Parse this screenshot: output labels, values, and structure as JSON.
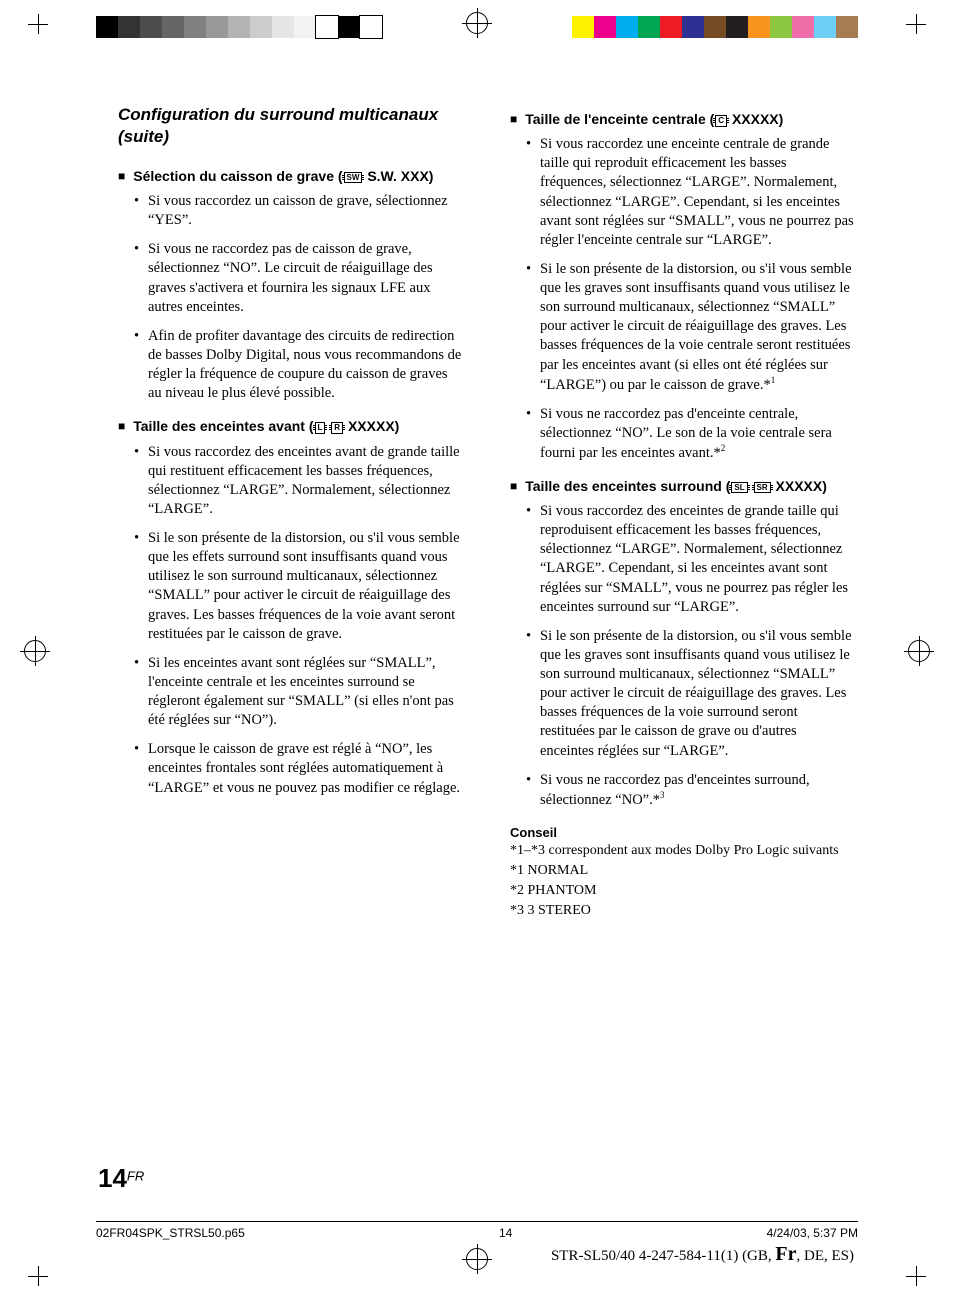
{
  "registration": {
    "left_bar_colors": [
      "#000000",
      "#333333",
      "#4d4d4d",
      "#666666",
      "#808080",
      "#999999",
      "#b3b3b3",
      "#cccccc",
      "#e6e6e6",
      "#f2f2f2",
      "#ffffff",
      "#000000",
      "#ffffff"
    ],
    "right_bar_colors": [
      "#fff200",
      "#ec008c",
      "#00aeef",
      "#00a651",
      "#ed1c24",
      "#2e3192",
      "#754c24",
      "#231f20",
      "#f7941d",
      "#8dc63f",
      "#f06eaa",
      "#6dcff6",
      "#a67c52"
    ]
  },
  "page_title": "Configuration du surround multicanaux (suite)",
  "sections": {
    "s1": {
      "head_prefix": "Sélection du caisson de grave (",
      "icon": "SW",
      "head_suffix": " S.W. XXX)",
      "bullets": [
        "Si vous raccordez un caisson de grave, sélectionnez “YES”.",
        "Si vous ne raccordez pas de caisson de grave, sélectionnez “NO”. Le circuit de réaiguillage des graves s'activera et fournira les signaux LFE aux autres enceintes.",
        "Afin de profiter davantage des circuits de redirection de basses Dolby Digital, nous vous recommandons de régler la fréquence de coupure du caisson de graves au niveau le plus élevé possible."
      ]
    },
    "s2": {
      "head_prefix": "Taille des enceintes avant (",
      "icon1": "L",
      "icon2": "R",
      "head_suffix": " XXXXX)",
      "bullets": [
        "Si vous raccordez des enceintes avant de grande taille qui restituent efficacement les basses fréquences, sélectionnez “LARGE”. Normalement, sélectionnez “LARGE”.",
        "Si le son présente de la distorsion, ou s'il vous semble que les effets surround sont insuffisants quand vous utilisez le son surround multicanaux, sélectionnez “SMALL” pour activer le circuit de  réaiguillage des graves. Les basses fréquences de la voie avant seront restituées par le caisson de grave.",
        "Si les enceintes avant sont réglées sur “SMALL”, l'enceinte centrale et les enceintes surround se régleront également sur “SMALL” (si elles n'ont pas été réglées sur “NO”).",
        "Lorsque le caisson de grave est réglé à “NO”, les enceintes frontales sont réglées automatiquement à “LARGE” et vous ne pouvez pas modifier ce réglage."
      ]
    },
    "s3": {
      "head_prefix": "Taille de l'enceinte centrale (",
      "icon": "C",
      "head_suffix": " XXXXX)",
      "b1": "Si vous raccordez une enceinte centrale de grande taille qui reproduit efficacement les basses fréquences, sélectionnez “LARGE”. Normalement, sélectionnez “LARGE”. Cependant, si les enceintes avant sont réglées sur “SMALL”, vous ne pourrez pas régler l'enceinte centrale sur “LARGE”.",
      "b2_pre": "Si le son présente de la distorsion, ou s'il vous semble que les graves sont insuffisants quand vous utilisez le son surround multicanaux, sélectionnez “SMALL” pour activer le circuit de réaiguillage des graves. Les basses fréquences de la voie centrale seront restituées par les enceintes avant (si elles ont été réglées sur “LARGE”) ou par le caisson de grave.*",
      "b2_sup": "1",
      "b3_pre": "Si vous ne raccordez pas d'enceinte centrale, sélectionnez “NO”. Le son de la voie centrale sera fourni par les enceintes avant.*",
      "b3_sup": "2"
    },
    "s4": {
      "head_prefix": "Taille des enceintes surround (",
      "icon1": "SL",
      "icon2": "SR",
      "head_suffix": " XXXXX)",
      "b1": "Si vous raccordez des enceintes de grande taille qui reproduisent efficacement les basses fréquences, sélectionnez “LARGE”. Normalement, sélectionnez “LARGE”. Cependant, si les enceintes avant sont réglées sur “SMALL”, vous ne pourrez pas régler les enceintes surround sur “LARGE”.",
      "b2": "Si le son présente de la distorsion, ou s'il vous semble que les graves sont insuffisants quand vous utilisez le son surround multicanaux, sélectionnez “SMALL” pour activer le circuit de réaiguillage des graves. Les basses fréquences de la voie surround seront restituées par le caisson de grave ou d'autres enceintes réglées sur “LARGE”.",
      "b3_pre": "Si vous ne raccordez pas d'enceintes surround, sélectionnez “NO”.*",
      "b3_sup": "3"
    }
  },
  "tip": {
    "head": "Conseil",
    "line1": "*1–*3 correspondent aux modes Dolby Pro Logic suivants",
    "n1": "*1  NORMAL",
    "n2": "*2  PHANTOM",
    "n3": "*3  3 STEREO"
  },
  "footer": {
    "page_num": "14",
    "page_suffix": "FR",
    "slug_file": "02FR04SPK_STRSL50.p65",
    "slug_page": "14",
    "slug_date": "4/24/03, 5:37 PM",
    "model_pre": "STR-SL50/40   4-247-584-11(1) (GB, ",
    "model_fr": "Fr",
    "model_post": ", DE, ES)"
  }
}
